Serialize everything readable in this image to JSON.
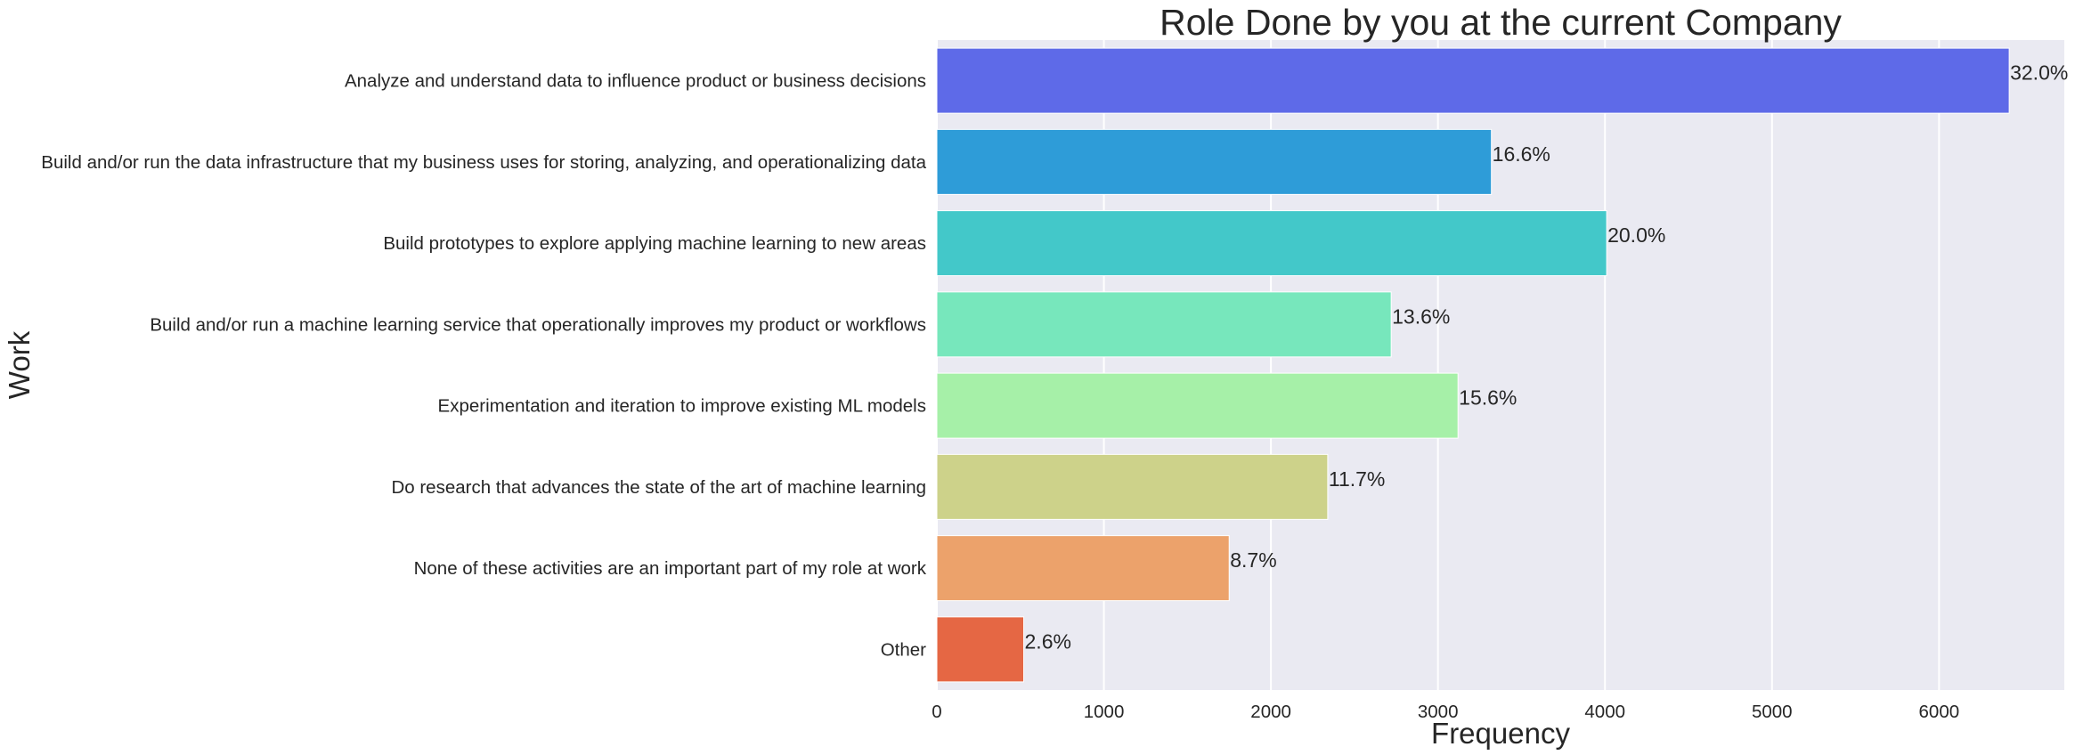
{
  "chart_data": {
    "type": "bar",
    "orientation": "horizontal",
    "title": "Role Done by you at the current Company",
    "xlabel": "Frequency",
    "ylabel": "Work",
    "xlim": [
      0,
      6750
    ],
    "xticks": [
      0,
      1000,
      2000,
      3000,
      4000,
      5000,
      6000
    ],
    "grid": true,
    "categories": [
      "Analyze and understand data to influence product or business decisions",
      "Build and/or run the data infrastructure that my business uses for storing, analyzing, and operationalizing data",
      "Build prototypes to explore applying machine learning to new areas",
      "Build and/or run a machine learning service that operationally improves my product or workflows",
      "Experimentation and iteration to improve existing ML models",
      "Do research that advances the state of the art of machine learning",
      "None of these activities are an important part of my role at work",
      "Other"
    ],
    "values": [
      6420,
      3320,
      4010,
      2720,
      3120,
      2340,
      1750,
      520
    ],
    "data_labels": [
      "32.0%",
      "16.6%",
      "20.0%",
      "13.6%",
      "15.6%",
      "11.7%",
      "8.7%",
      "2.6%"
    ],
    "colors": [
      "#5e6ae8",
      "#2e9cd8",
      "#43c8c9",
      "#77e7bc",
      "#a6f0a8",
      "#cdd28a",
      "#eca26b",
      "#e56744"
    ]
  }
}
